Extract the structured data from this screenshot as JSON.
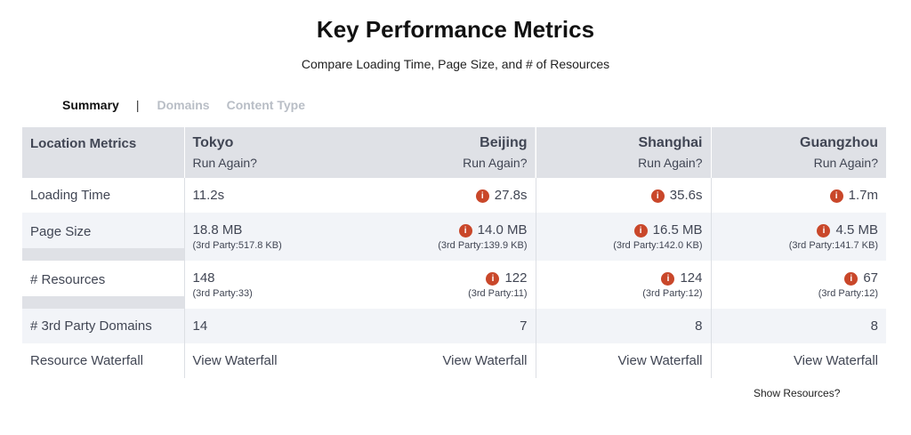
{
  "header": {
    "title": "Key Performance Metrics",
    "subtitle": "Compare Loading Time, Page Size, and # of Resources"
  },
  "tabs": [
    {
      "label": "Summary",
      "active": true
    },
    {
      "label": "Domains",
      "active": false
    },
    {
      "label": "Content Type",
      "active": false
    }
  ],
  "table": {
    "header_label": "Location Metrics",
    "run_again_label": "Run Again?",
    "locations": [
      "Tokyo",
      "Beijing",
      "Shanghai",
      "Guangzhou"
    ],
    "rows": {
      "loading_time": {
        "label": "Loading Time",
        "values": [
          "11.2s",
          "27.8s",
          "35.6s",
          "1.7m"
        ],
        "warning": [
          false,
          true,
          true,
          true
        ]
      },
      "page_size": {
        "label": "Page Size",
        "values": [
          "18.8 MB",
          "14.0 MB",
          "16.5 MB",
          "4.5 MB"
        ],
        "third_party": [
          "(3rd Party:517.8 KB)",
          "(3rd Party:139.9 KB)",
          "(3rd Party:142.0 KB)",
          "(3rd Party:141.7 KB)"
        ],
        "warning": [
          false,
          true,
          true,
          true
        ]
      },
      "resources": {
        "label": "# Resources",
        "values": [
          "148",
          "122",
          "124",
          "67"
        ],
        "third_party": [
          "(3rd Party:33)",
          "(3rd Party:11)",
          "(3rd Party:12)",
          "(3rd Party:12)"
        ],
        "warning": [
          false,
          true,
          true,
          true
        ]
      },
      "third_party_domains": {
        "label": "# 3rd Party Domains",
        "values": [
          "14",
          "7",
          "8",
          "8"
        ]
      },
      "waterfall": {
        "label": "Resource Waterfall",
        "values": [
          "View Waterfall",
          "View Waterfall",
          "View Waterfall",
          "View Waterfall"
        ]
      }
    }
  },
  "warning_icon": {
    "name": "info-warning-icon",
    "glyph": "i",
    "color": "#c9472a"
  },
  "footer": {
    "show_resources": "Show Resources?"
  }
}
